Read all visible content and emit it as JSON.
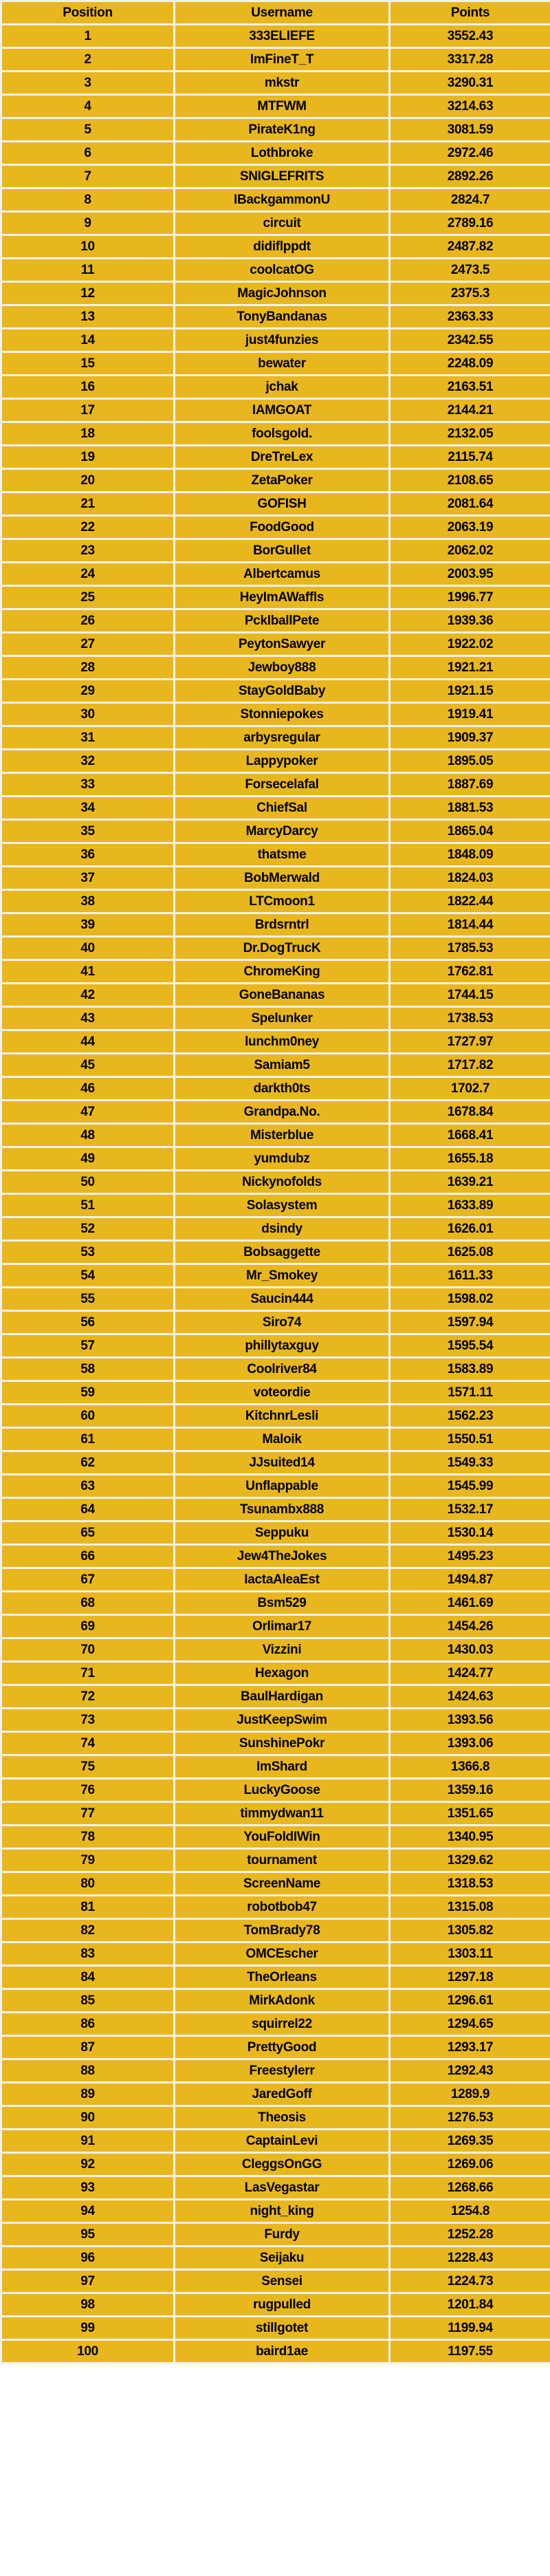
{
  "colors": {
    "row_bg": "#e8b71e",
    "grid": "#f1f1f1",
    "text": "#000000"
  },
  "table": {
    "columns": [
      "Position",
      "Username",
      "Points"
    ],
    "rows": [
      [
        "1",
        "333ELIEFE",
        "3552.43"
      ],
      [
        "2",
        "ImFineT_T",
        "3317.28"
      ],
      [
        "3",
        "mkstr",
        "3290.31"
      ],
      [
        "4",
        "MTFWM",
        "3214.63"
      ],
      [
        "5",
        "PirateK1ng",
        "3081.59"
      ],
      [
        "6",
        "Lothbroke",
        "2972.46"
      ],
      [
        "7",
        "SNIGLEFRITS",
        "2892.26"
      ],
      [
        "8",
        "IBackgammonU",
        "2824.7"
      ],
      [
        "9",
        "circuit",
        "2789.16"
      ],
      [
        "10",
        "didiflppdt",
        "2487.82"
      ],
      [
        "11",
        "coolcatOG",
        "2473.5"
      ],
      [
        "12",
        "MagicJohnson",
        "2375.3"
      ],
      [
        "13",
        "TonyBandanas",
        "2363.33"
      ],
      [
        "14",
        "just4funzies",
        "2342.55"
      ],
      [
        "15",
        "bewater",
        "2248.09"
      ],
      [
        "16",
        "jchak",
        "2163.51"
      ],
      [
        "17",
        "IAMGOAT",
        "2144.21"
      ],
      [
        "18",
        "foolsgold.",
        "2132.05"
      ],
      [
        "19",
        "DreTreLex",
        "2115.74"
      ],
      [
        "20",
        "ZetaPoker",
        "2108.65"
      ],
      [
        "21",
        "GOFISH",
        "2081.64"
      ],
      [
        "22",
        "FoodGood",
        "2063.19"
      ],
      [
        "23",
        "BorGullet",
        "2062.02"
      ],
      [
        "24",
        "Albertcamus",
        "2003.95"
      ],
      [
        "25",
        "HeyImAWaffls",
        "1996.77"
      ],
      [
        "26",
        "PcklballPete",
        "1939.36"
      ],
      [
        "27",
        "PeytonSawyer",
        "1922.02"
      ],
      [
        "28",
        "Jewboy888",
        "1921.21"
      ],
      [
        "29",
        "StayGoldBaby",
        "1921.15"
      ],
      [
        "30",
        "Stonniepokes",
        "1919.41"
      ],
      [
        "31",
        "arbysregular",
        "1909.37"
      ],
      [
        "32",
        "Lappypoker",
        "1895.05"
      ],
      [
        "33",
        "Forsecelafal",
        "1887.69"
      ],
      [
        "34",
        "ChiefSal",
        "1881.53"
      ],
      [
        "35",
        "MarcyDarcy",
        "1865.04"
      ],
      [
        "36",
        "thatsme",
        "1848.09"
      ],
      [
        "37",
        "BobMerwald",
        "1824.03"
      ],
      [
        "38",
        "LTCmoon1",
        "1822.44"
      ],
      [
        "39",
        "Brdsrntrl",
        "1814.44"
      ],
      [
        "40",
        "Dr.DogTrucK",
        "1785.53"
      ],
      [
        "41",
        "ChromeKing",
        "1762.81"
      ],
      [
        "42",
        "GoneBananas",
        "1744.15"
      ],
      [
        "43",
        "Spelunker",
        "1738.53"
      ],
      [
        "44",
        "lunchm0ney",
        "1727.97"
      ],
      [
        "45",
        "Samiam5",
        "1717.82"
      ],
      [
        "46",
        "darkth0ts",
        "1702.7"
      ],
      [
        "47",
        "Grandpa.No.",
        "1678.84"
      ],
      [
        "48",
        "Misterblue",
        "1668.41"
      ],
      [
        "49",
        "yumdubz",
        "1655.18"
      ],
      [
        "50",
        "Nickynofolds",
        "1639.21"
      ],
      [
        "51",
        "Solasystem",
        "1633.89"
      ],
      [
        "52",
        "dsindy",
        "1626.01"
      ],
      [
        "53",
        "Bobsaggette",
        "1625.08"
      ],
      [
        "54",
        "Mr_Smokey",
        "1611.33"
      ],
      [
        "55",
        "Saucin444",
        "1598.02"
      ],
      [
        "56",
        "Siro74",
        "1597.94"
      ],
      [
        "57",
        "phillytaxguy",
        "1595.54"
      ],
      [
        "58",
        "Coolriver84",
        "1583.89"
      ],
      [
        "59",
        "voteordie",
        "1571.11"
      ],
      [
        "60",
        "KitchnrLesli",
        "1562.23"
      ],
      [
        "61",
        "Maloik",
        "1550.51"
      ],
      [
        "62",
        "JJsuited14",
        "1549.33"
      ],
      [
        "63",
        "Unflappable",
        "1545.99"
      ],
      [
        "64",
        "Tsunambx888",
        "1532.17"
      ],
      [
        "65",
        "Seppuku",
        "1530.14"
      ],
      [
        "66",
        "Jew4TheJokes",
        "1495.23"
      ],
      [
        "67",
        "IactaAleaEst",
        "1494.87"
      ],
      [
        "68",
        "Bsm529",
        "1461.69"
      ],
      [
        "69",
        "Orlimar17",
        "1454.26"
      ],
      [
        "70",
        "Vizzini",
        "1430.03"
      ],
      [
        "71",
        "Hexagon",
        "1424.77"
      ],
      [
        "72",
        "BaulHardigan",
        "1424.63"
      ],
      [
        "73",
        "JustKeepSwim",
        "1393.56"
      ],
      [
        "74",
        "SunshinePokr",
        "1393.06"
      ],
      [
        "75",
        "ImShard",
        "1366.8"
      ],
      [
        "76",
        "LuckyGoose",
        "1359.16"
      ],
      [
        "77",
        "timmydwan11",
        "1351.65"
      ],
      [
        "78",
        "YouFoldIWin",
        "1340.95"
      ],
      [
        "79",
        "tournament",
        "1329.62"
      ],
      [
        "80",
        "ScreenName",
        "1318.53"
      ],
      [
        "81",
        "robotbob47",
        "1315.08"
      ],
      [
        "82",
        "TomBrady78",
        "1305.82"
      ],
      [
        "83",
        "OMCEscher",
        "1303.11"
      ],
      [
        "84",
        "TheOrleans",
        "1297.18"
      ],
      [
        "85",
        "MirkAdonk",
        "1296.61"
      ],
      [
        "86",
        "squirrel22",
        "1294.65"
      ],
      [
        "87",
        "PrettyGood",
        "1293.17"
      ],
      [
        "88",
        "Freestylerr",
        "1292.43"
      ],
      [
        "89",
        "JaredGoff",
        "1289.9"
      ],
      [
        "90",
        "Theosis",
        "1276.53"
      ],
      [
        "91",
        "CaptainLevi",
        "1269.35"
      ],
      [
        "92",
        "CleggsOnGG",
        "1269.06"
      ],
      [
        "93",
        "LasVegastar",
        "1268.66"
      ],
      [
        "94",
        "night_king",
        "1254.8"
      ],
      [
        "95",
        "Furdy",
        "1252.28"
      ],
      [
        "96",
        "Seijaku",
        "1228.43"
      ],
      [
        "97",
        "Sensei",
        "1224.73"
      ],
      [
        "98",
        "rugpulled",
        "1201.84"
      ],
      [
        "99",
        "stillgotet",
        "1199.94"
      ],
      [
        "100",
        "baird1ae",
        "1197.55"
      ]
    ]
  }
}
